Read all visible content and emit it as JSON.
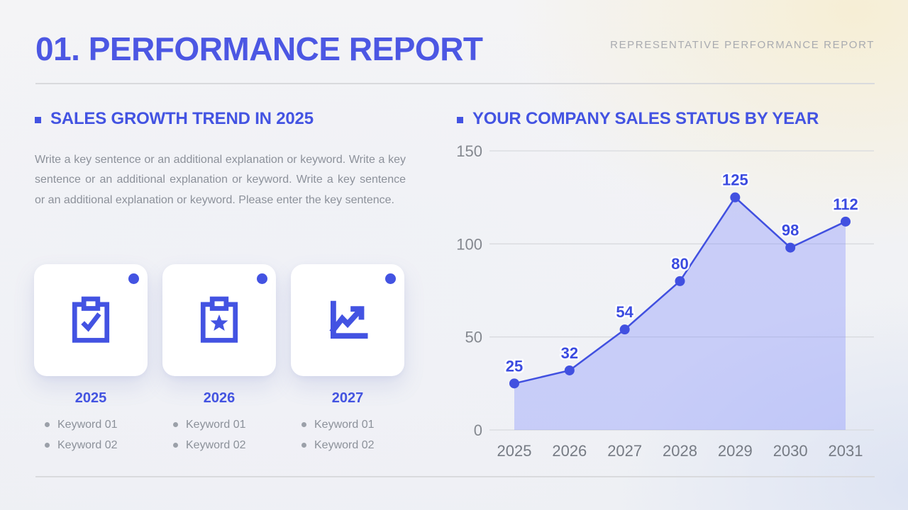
{
  "page": {
    "title": "01. PERFORMANCE REPORT",
    "header_right": "REPRESENTATIVE PERFORMANCE REPORT"
  },
  "left": {
    "heading": "SALES GROWTH TREND IN 2025",
    "paragraph": "Write a key sentence or an additional explanation or keyword. Write a key sentence or an additional explanation or keyword. Write a key sentence or an additional explanation or keyword. Please enter the key sentence.",
    "cards": [
      {
        "year": "2025",
        "icon": "clipboard-check-icon",
        "keywords": [
          "Keyword 01",
          "Keyword 02"
        ]
      },
      {
        "year": "2026",
        "icon": "clipboard-star-icon",
        "keywords": [
          "Keyword 01",
          "Keyword 02"
        ]
      },
      {
        "year": "2027",
        "icon": "trend-chart-icon",
        "keywords": [
          "Keyword 01",
          "Keyword 02"
        ]
      }
    ]
  },
  "right": {
    "heading": "YOUR COMPANY SALES STATUS BY YEAR"
  },
  "chart_data": {
    "type": "area",
    "title": "YOUR COMPANY SALES STATUS BY YEAR",
    "categories": [
      "2025",
      "2026",
      "2027",
      "2028",
      "2029",
      "2030",
      "2031"
    ],
    "values": [
      25,
      32,
      54,
      80,
      125,
      98,
      112
    ],
    "xlabel": "",
    "ylabel": "",
    "ylim": [
      0,
      150
    ],
    "yticks": [
      0,
      50,
      100,
      150
    ],
    "grid": "horizontal",
    "legend": "none",
    "data_labels": true,
    "line_color": "#4150e0",
    "marker_color": "#4150e0",
    "fill_color": "rgba(125,138,255,0.35)",
    "label_color": "#3b4be0",
    "tick_color": "#84888f",
    "grid_color": "#d8dade"
  },
  "colors": {
    "accent": "#4353e2",
    "title": "#4c57e3",
    "muted_text": "#8c919a",
    "header_right_text": "#a9abb0",
    "card_bg": "#ffffff"
  }
}
